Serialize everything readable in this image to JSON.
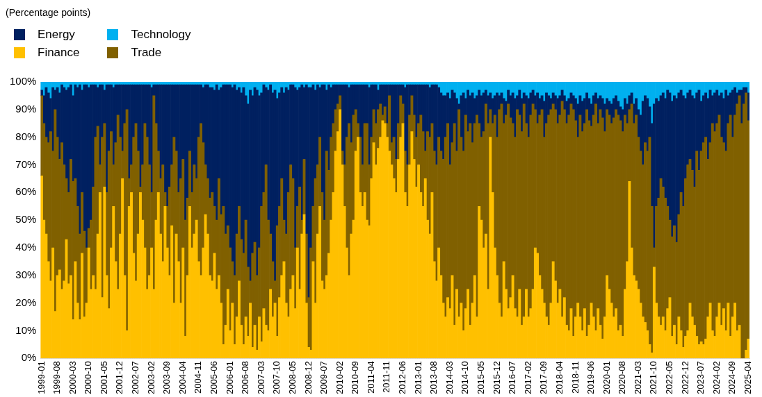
{
  "chart_data": {
    "type": "bar",
    "stacked": true,
    "subtitle": "(Percentage points)",
    "legend": "top left",
    "grid": false,
    "categories": [
      "1999-01",
      null,
      null,
      null,
      null,
      null,
      null,
      "1999-08",
      null,
      null,
      null,
      null,
      null,
      null,
      "2000-03",
      null,
      null,
      null,
      null,
      null,
      null,
      "2000-10",
      null,
      null,
      null,
      null,
      null,
      null,
      "2001-05",
      null,
      null,
      null,
      null,
      null,
      null,
      "2001-12",
      null,
      null,
      null,
      null,
      null,
      null,
      "2002-07",
      null,
      null,
      null,
      null,
      null,
      null,
      "2003-02",
      null,
      null,
      null,
      null,
      null,
      null,
      "2003-09",
      null,
      null,
      null,
      null,
      null,
      null,
      "2004-04",
      null,
      null,
      null,
      null,
      null,
      null,
      "2004-11",
      null,
      null,
      null,
      null,
      null,
      null,
      "2005-06",
      null,
      null,
      null,
      null,
      null,
      null,
      "2006-01",
      null,
      null,
      null,
      null,
      null,
      null,
      "2006-08",
      null,
      null,
      null,
      null,
      null,
      null,
      "2007-03",
      null,
      null,
      null,
      null,
      null,
      null,
      "2007-10",
      null,
      null,
      null,
      null,
      null,
      null,
      "2008-05",
      null,
      null,
      null,
      null,
      null,
      null,
      "2008-12",
      null,
      null,
      null,
      null,
      null,
      null,
      "2009-07",
      null,
      null,
      null,
      null,
      null,
      null,
      "2010-02",
      null,
      null,
      null,
      null,
      null,
      null,
      "2010-09",
      null,
      null,
      null,
      null,
      null,
      null,
      "2011-04",
      null,
      null,
      null,
      null,
      null,
      null,
      "2011-11",
      null,
      null,
      null,
      null,
      null,
      null,
      "2012-06",
      null,
      null,
      null,
      null,
      null,
      null,
      "2013-01",
      null,
      null,
      null,
      null,
      null,
      null,
      "2013-08",
      null,
      null,
      null,
      null,
      null,
      null,
      "2014-03",
      null,
      null,
      null,
      null,
      null,
      null,
      "2014-10",
      null,
      null,
      null,
      null,
      null,
      null,
      "2015-05",
      null,
      null,
      null,
      null,
      null,
      null,
      "2015-12",
      null,
      null,
      null,
      null,
      null,
      null,
      "2016-07",
      null,
      null,
      null,
      null,
      null,
      null,
      "2017-02",
      null,
      null,
      null,
      null,
      null,
      null,
      "2017-09",
      null,
      null,
      null,
      null,
      null,
      null,
      "2018-04",
      null,
      null,
      null,
      null,
      null,
      null,
      "2018-11",
      null,
      null,
      null,
      null,
      null,
      null,
      "2019-06",
      null,
      null,
      null,
      null,
      null,
      null,
      "2020-01",
      null,
      null,
      null,
      null,
      null,
      null,
      "2020-08",
      null,
      null,
      null,
      null,
      null,
      null,
      "2021-03",
      null,
      null,
      null,
      null,
      null,
      null,
      "2021-10",
      null,
      null,
      null,
      null,
      null,
      null,
      "2022-05",
      null,
      null,
      null,
      null,
      null,
      null,
      "2022-12",
      null,
      null,
      null,
      null,
      null,
      null,
      "2023-07",
      null,
      null,
      null,
      null,
      null,
      null,
      "2024-02",
      null,
      null,
      null,
      null,
      null,
      null,
      "2024-09",
      null,
      null,
      null,
      null,
      null,
      null,
      "2025-04"
    ],
    "ylim": [
      0,
      100
    ],
    "yticks": [
      {
        "value": 0,
        "label": "0%"
      },
      {
        "value": 10,
        "label": "10%"
      },
      {
        "value": 20,
        "label": "20%"
      },
      {
        "value": 30,
        "label": "30%"
      },
      {
        "value": 40,
        "label": "40%"
      },
      {
        "value": 50,
        "label": "50%"
      },
      {
        "value": 60,
        "label": "60%"
      },
      {
        "value": 70,
        "label": "70%"
      },
      {
        "value": 80,
        "label": "80%"
      },
      {
        "value": 90,
        "label": "90%"
      },
      {
        "value": 100,
        "label": "100%"
      }
    ],
    "series": [
      {
        "name": "Finance",
        "color": "#ffc000",
        "values": [
          66,
          50,
          45,
          35,
          28,
          40,
          17,
          30,
          32,
          25,
          28,
          43,
          27,
          30,
          14,
          35,
          20,
          14,
          38,
          15,
          20,
          40,
          25,
          30,
          25,
          45,
          60,
          22,
          62,
          30,
          18,
          40,
          55,
          35,
          25,
          45,
          65,
          30,
          10,
          55,
          60,
          38,
          28,
          45,
          60,
          50,
          40,
          25,
          30,
          40,
          25,
          50,
          60,
          45,
          35,
          55,
          40,
          30,
          48,
          20,
          45,
          35,
          20,
          40,
          8,
          30,
          55,
          40,
          45,
          50,
          35,
          30,
          40,
          52,
          45,
          30,
          28,
          38,
          25,
          30,
          20,
          5,
          12,
          25,
          10,
          20,
          5,
          15,
          28,
          12,
          5,
          15,
          8,
          20,
          4,
          12,
          3,
          15,
          6,
          18,
          12,
          10,
          25,
          15,
          20,
          8,
          22,
          30,
          35,
          20,
          15,
          25,
          30,
          18,
          40,
          25,
          45,
          52,
          20,
          4,
          3,
          35,
          20,
          45,
          55,
          28,
          25,
          30,
          38,
          50,
          60,
          75,
          82,
          90,
          70,
          55,
          40,
          30,
          45,
          50,
          75,
          80,
          60,
          55,
          60,
          50,
          48,
          65,
          78,
          70,
          76,
          80,
          86,
          85,
          80,
          75,
          70,
          65,
          60,
          72,
          80,
          85,
          60,
          55,
          70,
          82,
          72,
          62,
          70,
          60,
          55,
          65,
          50,
          45,
          60,
          35,
          28,
          40,
          30,
          20,
          15,
          22,
          18,
          30,
          12,
          25,
          15,
          20,
          10,
          18,
          25,
          12,
          20,
          30,
          15,
          55,
          50,
          40,
          45,
          25,
          80,
          60,
          40,
          30,
          20,
          15,
          35,
          25,
          18,
          22,
          30,
          18,
          15,
          25,
          12,
          15,
          25,
          15,
          18,
          25,
          40,
          38,
          30,
          25,
          20,
          15,
          12,
          20,
          35,
          28,
          20,
          25,
          15,
          22,
          12,
          10,
          18,
          8,
          15,
          20,
          15,
          10,
          18,
          8,
          12,
          20,
          15,
          10,
          18,
          12,
          7,
          15,
          30,
          25,
          20,
          15,
          18,
          10,
          12,
          8,
          25,
          35,
          64,
          40,
          30,
          28,
          25,
          20,
          15,
          13,
          10,
          5,
          2,
          33,
          20,
          15,
          12,
          15,
          10,
          18,
          22,
          8,
          12,
          5,
          15,
          10,
          4,
          8,
          10,
          20,
          15,
          12,
          8,
          5,
          6,
          5,
          7,
          15,
          20,
          10,
          8,
          15,
          20,
          12,
          18,
          10,
          20,
          8,
          15,
          20,
          10,
          12,
          0,
          0,
          3,
          7
        ]
      },
      {
        "name": "Trade",
        "color": "#806000",
        "values": [
          29,
          35,
          35,
          43,
          54,
          35,
          73,
          50,
          40,
          53,
          42,
          22,
          33,
          42,
          50,
          30,
          35,
          31,
          22,
          31,
          20,
          7,
          25,
          32,
          55,
          39,
          10,
          58,
          23,
          30,
          57,
          42,
          15,
          43,
          63,
          35,
          10,
          55,
          80,
          10,
          10,
          42,
          57,
          30,
          2,
          20,
          45,
          55,
          40,
          20,
          70,
          35,
          15,
          20,
          35,
          5,
          15,
          32,
          22,
          60,
          30,
          25,
          45,
          32,
          42,
          28,
          20,
          20,
          25,
          15,
          45,
          55,
          38,
          18,
          20,
          28,
          32,
          17,
          25,
          35,
          32,
          50,
          33,
          23,
          30,
          15,
          25,
          30,
          27,
          31,
          33,
          35,
          25,
          8,
          34,
          30,
          27,
          25,
          49,
          42,
          58,
          40,
          20,
          20,
          8,
          40,
          33,
          35,
          15,
          25,
          45,
          45,
          35,
          22,
          15,
          37,
          5,
          20,
          25,
          18,
          37,
          20,
          45,
          25,
          25,
          32,
          25,
          45,
          30,
          30,
          25,
          15,
          10,
          5,
          5,
          15,
          40,
          55,
          33,
          38,
          15,
          5,
          20,
          15,
          25,
          35,
          22,
          15,
          12,
          15,
          14,
          12,
          2,
          6,
          5,
          20,
          8,
          15,
          12,
          13,
          15,
          7,
          15,
          15,
          18,
          13,
          16,
          18,
          15,
          28,
          27,
          10,
          32,
          35,
          25,
          40,
          42,
          40,
          45,
          52,
          65,
          63,
          52,
          48,
          73,
          50,
          75,
          60,
          65,
          70,
          57,
          73,
          58,
          55,
          73,
          30,
          30,
          42,
          47,
          60,
          10,
          25,
          48,
          50,
          70,
          77,
          50,
          63,
          74,
          65,
          55,
          62,
          75,
          63,
          70,
          77,
          60,
          65,
          70,
          67,
          50,
          47,
          58,
          65,
          60,
          70,
          76,
          70,
          57,
          62,
          65,
          63,
          78,
          68,
          73,
          78,
          74,
          82,
          71,
          60,
          73,
          72,
          67,
          82,
          74,
          64,
          73,
          82,
          67,
          78,
          80,
          67,
          60,
          63,
          65,
          72,
          72,
          78,
          74,
          74,
          63,
          50,
          26,
          52,
          55,
          60,
          55,
          55,
          55,
          65,
          65,
          75,
          53,
          7,
          35,
          43,
          53,
          47,
          48,
          37,
          28,
          36,
          36,
          37,
          37,
          50,
          51,
          57,
          60,
          52,
          53,
          50,
          67,
          63,
          69,
          73,
          73,
          57,
          58,
          75,
          74,
          70,
          68,
          68,
          60,
          65,
          65,
          80,
          65,
          68,
          82,
          83,
          85,
          92,
          93,
          79
        ]
      },
      {
        "name": "Energy",
        "color": "#002060",
        "values": [
          2,
          10,
          18,
          18,
          12,
          23,
          7,
          18,
          24,
          21,
          28,
          32,
          38,
          27,
          31,
          34,
          43,
          54,
          37,
          53,
          59,
          51,
          49,
          37,
          19,
          14,
          29,
          19,
          12,
          39,
          24,
          17,
          28,
          21,
          11,
          19,
          24,
          14,
          9,
          34,
          29,
          19,
          14,
          24,
          37,
          29,
          14,
          19,
          29,
          38,
          4,
          14,
          24,
          34,
          29,
          39,
          44,
          37,
          29,
          19,
          24,
          39,
          34,
          27,
          49,
          41,
          24,
          39,
          29,
          34,
          19,
          14,
          20,
          29,
          34,
          40,
          38,
          42,
          49,
          32,
          46,
          44,
          54,
          51,
          59,
          63,
          69,
          52,
          43,
          53,
          60,
          45,
          59,
          69,
          57,
          56,
          67,
          55,
          41,
          39,
          28,
          47,
          54,
          61,
          69,
          46,
          41,
          33,
          46,
          53,
          37,
          29,
          34,
          58,
          42,
          36,
          49,
          26,
          54,
          76,
          58,
          44,
          32,
          29,
          18,
          39,
          49,
          22,
          31,
          18,
          14,
          9,
          7,
          4,
          24,
          29,
          19,
          13,
          21,
          11,
          9,
          14,
          19,
          29,
          14,
          14,
          28,
          19,
          9,
          14,
          7,
          7,
          11,
          8,
          14,
          4,
          21,
          19,
          27,
          14,
          4,
          7,
          23,
          29,
          11,
          4,
          11,
          19,
          14,
          11,
          17,
          24,
          17,
          18,
          14,
          24,
          29,
          18,
          21,
          23,
          15,
          11,
          24,
          19,
          11,
          19,
          2,
          15,
          21,
          6,
          15,
          10,
          18,
          9,
          7,
          12,
          15,
          14,
          5,
          10,
          6,
          9,
          7,
          16,
          5,
          4,
          9,
          5,
          5,
          8,
          11,
          14,
          5,
          9,
          12,
          4,
          10,
          14,
          8,
          5,
          5,
          11,
          6,
          5,
          13,
          11,
          7,
          4,
          4,
          5,
          9,
          7,
          4,
          5,
          8,
          6,
          4,
          5,
          8,
          12,
          7,
          11,
          9,
          6,
          8,
          8,
          7,
          4,
          9,
          5,
          7,
          10,
          4,
          5,
          7,
          7,
          5,
          5,
          5,
          8,
          6,
          7,
          5,
          4,
          7,
          6,
          10,
          13,
          23,
          17,
          19,
          11,
          30,
          52,
          39,
          35,
          30,
          34,
          36,
          42,
          46,
          49,
          47,
          52,
          44,
          37,
          40,
          29,
          26,
          25,
          27,
          32,
          21,
          29,
          18,
          17,
          16,
          22,
          19,
          10,
          14,
          12,
          7,
          16,
          16,
          22,
          10,
          8,
          17,
          10,
          4,
          2,
          12,
          6,
          2,
          10
        ]
      },
      {
        "name": "Technology",
        "color": "#00b0f0",
        "values": [
          3,
          5,
          2,
          4,
          6,
          2,
          3,
          2,
          4,
          1,
          2,
          3,
          2,
          1,
          5,
          1,
          2,
          1,
          3,
          1,
          1,
          2,
          1,
          1,
          1,
          2,
          1,
          1,
          3,
          1,
          1,
          1,
          2,
          1,
          1,
          1,
          1,
          1,
          1,
          1,
          1,
          1,
          1,
          1,
          1,
          1,
          1,
          1,
          1,
          2,
          1,
          1,
          1,
          1,
          1,
          1,
          1,
          1,
          1,
          1,
          1,
          1,
          1,
          1,
          1,
          1,
          1,
          1,
          1,
          1,
          1,
          1,
          2,
          1,
          1,
          2,
          2,
          3,
          1,
          3,
          2,
          1,
          1,
          1,
          1,
          2,
          1,
          3,
          2,
          4,
          2,
          5,
          8,
          3,
          5,
          2,
          3,
          5,
          4,
          1,
          2,
          3,
          1,
          4,
          3,
          6,
          4,
          2,
          4,
          2,
          3,
          1,
          1,
          2,
          3,
          2,
          1,
          2,
          1,
          2,
          2,
          1,
          3,
          1,
          2,
          1,
          1,
          3,
          1,
          2,
          1,
          1,
          1,
          1,
          1,
          1,
          1,
          2,
          1,
          1,
          1,
          1,
          1,
          1,
          1,
          1,
          2,
          1,
          1,
          1,
          3,
          1,
          1,
          1,
          1,
          1,
          1,
          1,
          1,
          1,
          1,
          1,
          2,
          1,
          1,
          1,
          1,
          1,
          1,
          1,
          1,
          1,
          1,
          2,
          1,
          1,
          1,
          2,
          4,
          5,
          5,
          4,
          6,
          3,
          4,
          6,
          8,
          5,
          4,
          6,
          3,
          5,
          4,
          6,
          5,
          3,
          5,
          4,
          3,
          5,
          4,
          6,
          5,
          4,
          5,
          4,
          6,
          7,
          3,
          5,
          4,
          6,
          5,
          3,
          6,
          4,
          5,
          6,
          4,
          3,
          5,
          4,
          6,
          5,
          7,
          4,
          5,
          6,
          4,
          5,
          6,
          5,
          3,
          5,
          7,
          6,
          4,
          5,
          6,
          8,
          5,
          7,
          6,
          4,
          6,
          8,
          5,
          4,
          6,
          5,
          6,
          8,
          6,
          7,
          8,
          6,
          5,
          7,
          9,
          10,
          6,
          8,
          5,
          4,
          8,
          6,
          10,
          12,
          7,
          5,
          6,
          9,
          15,
          8,
          6,
          7,
          5,
          4,
          6,
          3,
          4,
          7,
          5,
          6,
          4,
          3,
          5,
          6,
          4,
          3,
          5,
          6,
          4,
          3,
          7,
          5,
          4,
          6,
          3,
          5,
          4,
          3,
          5,
          4,
          6,
          3,
          5,
          4,
          3,
          2,
          4,
          3,
          3,
          2,
          2,
          4
        ]
      }
    ]
  }
}
